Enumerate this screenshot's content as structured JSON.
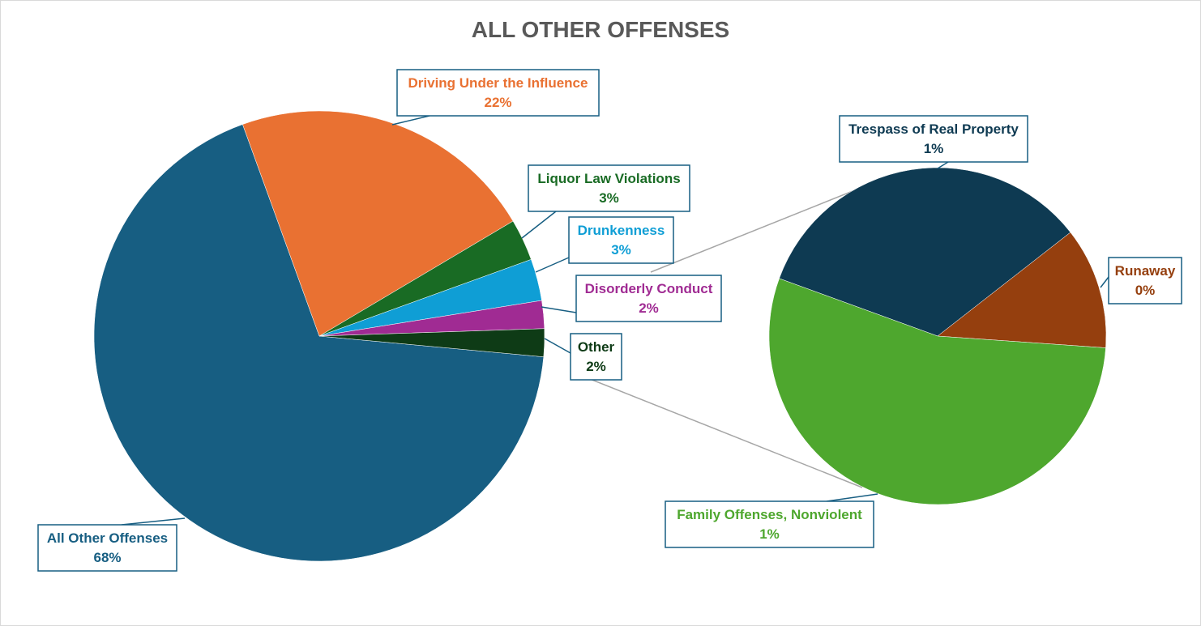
{
  "chart_data": {
    "type": "pie",
    "subtype": "pie-of-pie",
    "title": "ALL OTHER OFFENSES",
    "legend": "none",
    "main_pie": [
      {
        "name": "All Other Offenses",
        "value": 68,
        "label": "68%",
        "color": "#175E82"
      },
      {
        "name": "Driving Under the Influence",
        "value": 22,
        "label": "22%",
        "color": "#E97132"
      },
      {
        "name": "Liquor Law Violations",
        "value": 3,
        "label": "3%",
        "color": "#196B24"
      },
      {
        "name": "Drunkenness",
        "value": 3,
        "label": "3%",
        "color": "#0F9ED5"
      },
      {
        "name": "Disorderly Conduct",
        "value": 2,
        "label": "2%",
        "color": "#A02B93"
      },
      {
        "name": "Other",
        "value": 2,
        "label": "2%",
        "color": "#0E3B16"
      }
    ],
    "secondary_pie": [
      {
        "name": "Trespass of Real Property",
        "value": 1,
        "label": "1%",
        "color": "#0E3A52"
      },
      {
        "name": "Runaway",
        "value": 0,
        "label": "0%",
        "color": "#953F0E"
      },
      {
        "name": "Family Offenses, Nonviolent",
        "value": 1,
        "label": "1%",
        "color": "#4EA72E"
      }
    ]
  }
}
